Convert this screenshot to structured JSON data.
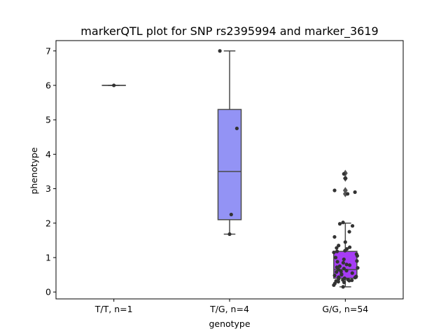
{
  "chart_data": {
    "type": "box",
    "title": "markerQTL plot for SNP rs2395994 and marker_3619",
    "xlabel": "genotype",
    "ylabel": "phenotype",
    "ylim": [
      -0.2,
      7.3
    ],
    "yticks": [
      0,
      1,
      2,
      3,
      4,
      5,
      6,
      7
    ],
    "categories": [
      "T/T, n=1",
      "T/G, n=4",
      "G/G, n=54"
    ],
    "groups": [
      {
        "label": "T/T, n=1",
        "color": "#8c8cff",
        "box": {
          "whislo": 6.0,
          "q1": 6.0,
          "med": 6.0,
          "q3": 6.0,
          "whishi": 6.0
        },
        "fliers": [],
        "points": [
          6.0
        ]
      },
      {
        "label": "T/G, n=4",
        "color": "#9393f5",
        "box": {
          "whislo": 1.68,
          "q1": 2.1,
          "med": 3.5,
          "q3": 5.3,
          "whishi": 7.0
        },
        "fliers": [],
        "points": [
          7.0,
          4.75,
          2.25,
          1.68
        ]
      },
      {
        "label": "G/G, n=54",
        "color": "#a63cf5",
        "box": {
          "whislo": 0.15,
          "q1": 0.4,
          "med": 0.65,
          "q3": 1.18,
          "whishi": 2.0
        },
        "fliers": [
          3.45,
          3.3,
          2.95,
          2.85
        ],
        "points": [
          3.43,
          3.3,
          2.95,
          2.9,
          2.85,
          2.02,
          1.98,
          1.92,
          1.75,
          1.6,
          1.45,
          1.35,
          1.3,
          1.28,
          1.25,
          1.2,
          1.18,
          1.15,
          1.1,
          1.05,
          1.0,
          0.95,
          0.9,
          0.88,
          0.85,
          0.8,
          0.78,
          0.75,
          0.72,
          0.7,
          0.68,
          0.65,
          0.62,
          0.6,
          0.58,
          0.55,
          0.52,
          0.5,
          0.48,
          0.45,
          0.43,
          0.42,
          0.4,
          0.38,
          0.36,
          0.35,
          0.34,
          0.33,
          0.32,
          0.3,
          0.28,
          0.25,
          0.2,
          0.15
        ]
      }
    ]
  }
}
